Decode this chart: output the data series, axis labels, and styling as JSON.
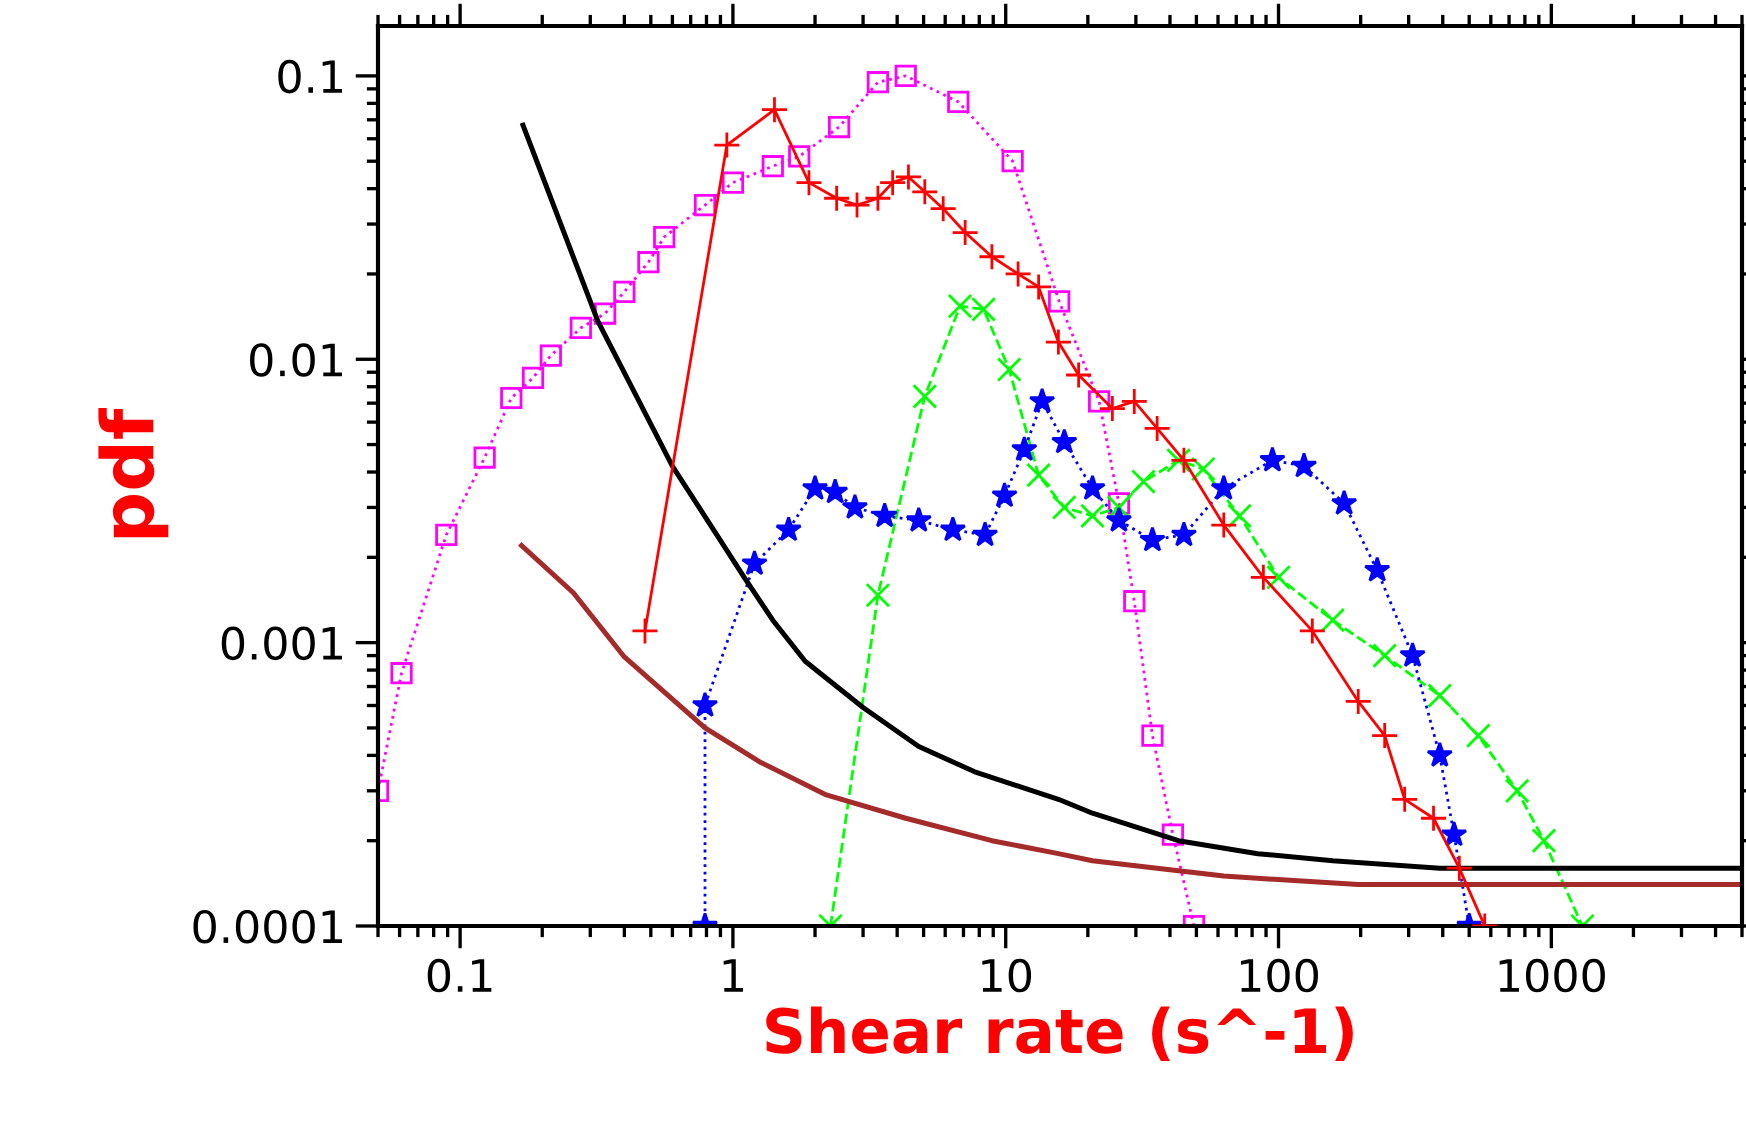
{
  "chart_data": {
    "type": "line",
    "xlabel": "Shear rate (s^-1)",
    "ylabel": "pdf",
    "log": "xy",
    "grid": false,
    "legend": false,
    "xlim": [
      0.05,
      5000
    ],
    "ylim": [
      0.0001,
      0.15
    ],
    "xticks": [
      0.1,
      1,
      10,
      100,
      1000
    ],
    "yticks": [
      0.0001,
      0.001,
      0.01,
      0.1
    ],
    "series": [
      {
        "color": "#ff00ff",
        "marker": "square",
        "line_style": "dotted",
        "x": [
          0.05,
          0.061,
          0.089,
          0.123,
          0.154,
          0.185,
          0.215,
          0.277,
          0.34,
          0.4,
          0.49,
          0.56,
          0.79,
          1.0,
          1.4,
          1.75,
          2.45,
          3.4,
          4.3,
          6.7,
          10.6,
          15.7,
          22,
          26,
          29.6,
          34.5,
          41,
          49
        ],
        "values": [
          0.0003,
          0.00078,
          0.0024,
          0.0045,
          0.0073,
          0.0086,
          0.0103,
          0.0129,
          0.0145,
          0.0173,
          0.022,
          0.027,
          0.035,
          0.042,
          0.048,
          0.052,
          0.066,
          0.095,
          0.1,
          0.081,
          0.05,
          0.016,
          0.0071,
          0.0031,
          0.0014,
          0.00047,
          0.00021,
          0.0001
        ]
      },
      {
        "color": "#ff0000",
        "marker": "plus",
        "line_style": "solid",
        "x": [
          0.476,
          0.95,
          1.42,
          1.9,
          2.4,
          2.85,
          3.4,
          3.85,
          4.4,
          5.05,
          5.9,
          7.1,
          8.9,
          11.1,
          13.2,
          15.6,
          18.5,
          24.6,
          29.6,
          35.9,
          45,
          63,
          88,
          133,
          196,
          245,
          290,
          370,
          460,
          570
        ],
        "values": [
          0.0011,
          0.057,
          0.076,
          0.042,
          0.037,
          0.035,
          0.037,
          0.042,
          0.044,
          0.039,
          0.034,
          0.028,
          0.023,
          0.02,
          0.018,
          0.0115,
          0.0088,
          0.0067,
          0.0071,
          0.0057,
          0.0044,
          0.0026,
          0.0017,
          0.0011,
          0.00062,
          0.00047,
          0.00028,
          0.00024,
          0.00016,
          0.0001
        ]
      },
      {
        "color": "#00ff00",
        "marker": "cross",
        "line_style": "dashed",
        "x": [
          2.28,
          3.4,
          5.05,
          6.8,
          8.3,
          10.3,
          13.2,
          16.4,
          20.8,
          26,
          32,
          43,
          53,
          72,
          100,
          158,
          245,
          390,
          540,
          750,
          940,
          1300
        ],
        "values": [
          0.0001,
          0.00147,
          0.0074,
          0.0154,
          0.015,
          0.0092,
          0.0039,
          0.003,
          0.0028,
          0.003,
          0.0037,
          0.0044,
          0.0041,
          0.0028,
          0.0017,
          0.0012,
          0.0009,
          0.00065,
          0.00047,
          0.0003,
          0.0002,
          0.0001
        ]
      },
      {
        "color": "#0000ff",
        "marker": "star",
        "line_style": "dotted",
        "x": [
          0.79,
          0.79,
          1.2,
          1.6,
          2.0,
          2.37,
          2.8,
          3.6,
          4.8,
          6.4,
          8.4,
          9.9,
          11.7,
          13.6,
          16.4,
          20.8,
          26,
          34.5,
          45,
          63,
          95,
          124,
          174,
          230,
          310,
          390,
          440,
          500
        ],
        "values": [
          0.0001,
          0.0006,
          0.0019,
          0.0025,
          0.0035,
          0.0034,
          0.003,
          0.0028,
          0.0027,
          0.0025,
          0.0024,
          0.0033,
          0.0048,
          0.0071,
          0.0051,
          0.0035,
          0.0027,
          0.0023,
          0.0024,
          0.0035,
          0.0044,
          0.0042,
          0.0031,
          0.0018,
          0.0009,
          0.0004,
          0.00021,
          0.0001
        ]
      },
      {
        "color": "#000000",
        "marker": "none",
        "line_style": "solid",
        "x": [
          0.17,
          0.32,
          0.6,
          1.1,
          1.4,
          1.84,
          3.0,
          4.8,
          7.7,
          15.6,
          20.8,
          43,
          84,
          158,
          390,
          5000
        ],
        "values": [
          0.067,
          0.0136,
          0.0042,
          0.0017,
          0.0012,
          0.00086,
          0.00059,
          0.00043,
          0.00035,
          0.00028,
          0.00025,
          0.0002,
          0.00018,
          0.00017,
          0.00016,
          0.00016
        ]
      },
      {
        "color": "#a52a2a",
        "marker": "none",
        "line_style": "solid",
        "x": [
          0.168,
          0.26,
          0.4,
          0.79,
          1.25,
          2.2,
          4.3,
          8.9,
          15.6,
          20.8,
          63,
          196,
          5000
        ],
        "values": [
          0.0022,
          0.0015,
          0.00089,
          0.0005,
          0.00038,
          0.00029,
          0.00024,
          0.0002,
          0.00018,
          0.00017,
          0.00015,
          0.00014,
          0.00014
        ]
      }
    ]
  }
}
